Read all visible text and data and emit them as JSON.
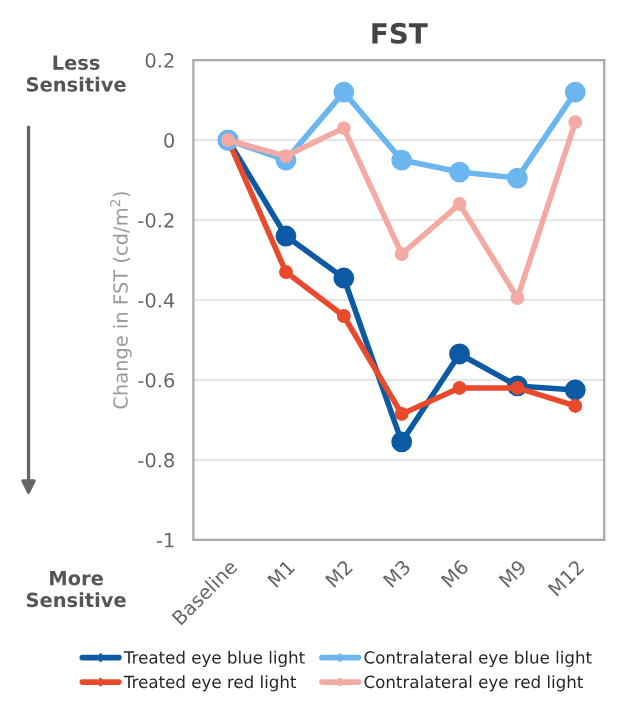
{
  "chart_data": {
    "type": "line",
    "title": "FST",
    "ylabel": "Change in FST (cd/m$^{2}$)",
    "categories": [
      "Baseline",
      "M1",
      "M2",
      "M3",
      "M6",
      "M9",
      "M12"
    ],
    "series": [
      {
        "name": "Treated eye blue light",
        "color": "#0b5aa3",
        "values": [
          0,
          -0.24,
          -0.345,
          -0.755,
          -0.535,
          -0.615,
          -0.625
        ]
      },
      {
        "name": "Treated eye red light",
        "color": "#ea4a2c",
        "values": [
          0,
          -0.33,
          -0.44,
          -0.685,
          -0.62,
          -0.62,
          -0.665
        ]
      },
      {
        "name": "Contralateral eye blue light",
        "color": "#6cb6ef",
        "values": [
          0,
          -0.05,
          0.12,
          -0.05,
          -0.08,
          -0.095,
          0.12
        ]
      },
      {
        "name": "Contralateral eye red light",
        "color": "#f4aaa2",
        "values": [
          0,
          -0.04,
          0.03,
          -0.285,
          -0.16,
          -0.395,
          0.045
        ]
      }
    ],
    "ylim": [
      -1,
      0.2
    ],
    "yticks": [
      -1,
      -0.8,
      -0.6,
      -0.4,
      -0.2,
      0,
      0.2
    ],
    "grid": "y",
    "legend": "bottom",
    "marker": "circle",
    "line_style": "solid",
    "annotations": [
      "Less Sensitive",
      "More Sensitive"
    ]
  }
}
